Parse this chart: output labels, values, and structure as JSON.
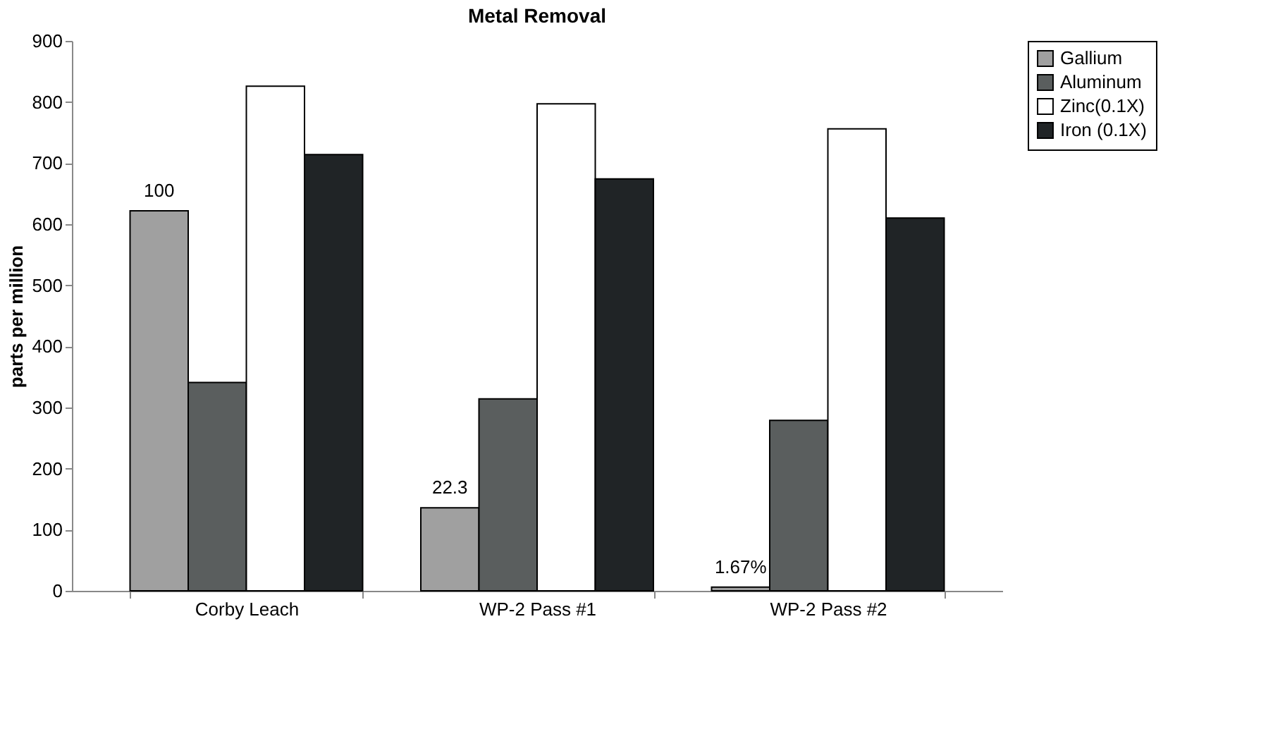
{
  "chart_data": {
    "type": "bar",
    "title": "Metal Removal",
    "ylabel": "parts per million",
    "categories": [
      "Corby Leach",
      "WP-2 Pass #1",
      "WP-2 Pass #2"
    ],
    "series": [
      {
        "name": "Gallium",
        "color": "#a0a0a0",
        "values": [
          622,
          136,
          6
        ]
      },
      {
        "name": "Aluminum",
        "color": "#5a5e5e",
        "values": [
          341,
          314,
          279
        ]
      },
      {
        "name": "Zinc(0.1X)",
        "color": "#ffffff",
        "values": [
          826,
          797,
          756
        ]
      },
      {
        "name": "Iron (0.1X)",
        "color": "#202426",
        "values": [
          714,
          674,
          610
        ]
      }
    ],
    "ylim": [
      0,
      900
    ],
    "yticks": [
      0,
      100,
      200,
      300,
      400,
      500,
      600,
      700,
      800,
      900
    ],
    "grid": false,
    "legend": "right",
    "annotations": [
      "100",
      "22.3",
      "1.67%"
    ]
  }
}
